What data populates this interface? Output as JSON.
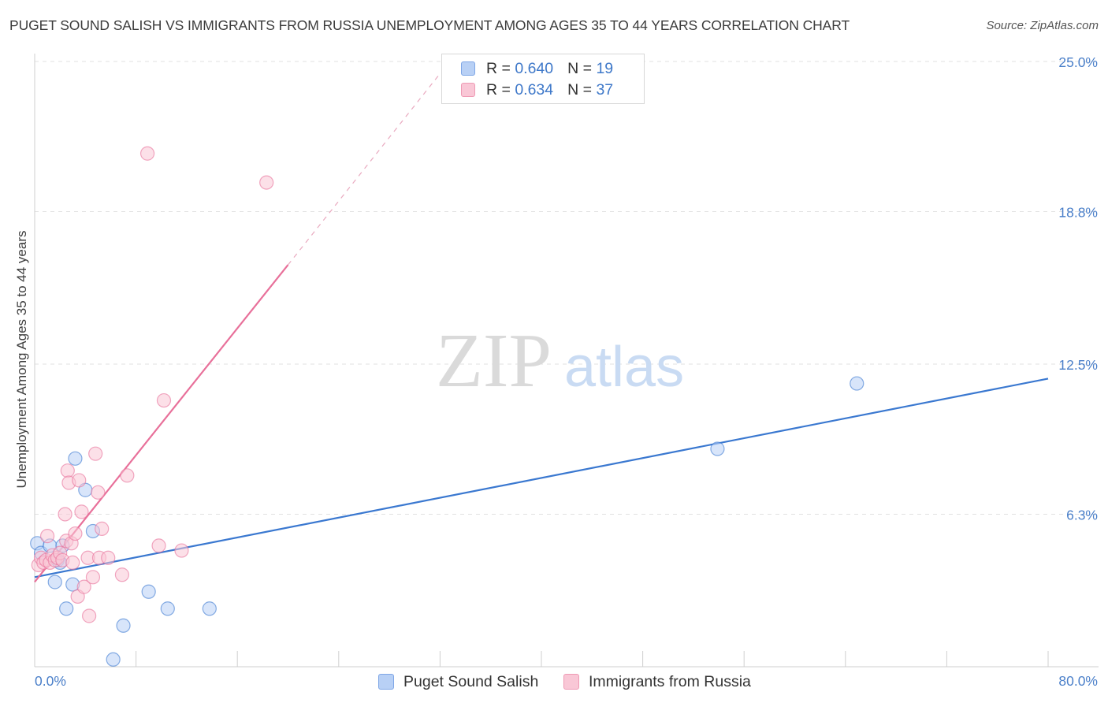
{
  "header": {
    "title": "PUGET SOUND SALISH VS IMMIGRANTS FROM RUSSIA UNEMPLOYMENT AMONG AGES 35 TO 44 YEARS CORRELATION CHART",
    "source": "Source: ZipAtlas.com"
  },
  "watermark": {
    "zip": "ZIP",
    "atlas": "atlas"
  },
  "legend": {
    "rows": [
      {
        "r_label": "R = ",
        "r_value": "0.640",
        "n_label": "N = ",
        "n_value": "19"
      },
      {
        "r_label": "R = ",
        "r_value": "0.634",
        "n_label": "N = ",
        "n_value": "37"
      }
    ]
  },
  "bottom_legend": {
    "blue": "Puget Sound Salish",
    "pink": "Immigrants from Russia"
  },
  "chart_data": {
    "type": "scatter",
    "title": "PUGET SOUND SALISH VS IMMIGRANTS FROM RUSSIA UNEMPLOYMENT AMONG AGES 35 TO 44 YEARS CORRELATION CHART",
    "xlabel": "",
    "ylabel": "Unemployment Among Ages 35 to 44 years",
    "xlim": [
      0,
      80
    ],
    "ylim": [
      0,
      25
    ],
    "x_tick_labels": [
      "0.0%",
      "80.0%"
    ],
    "y_ticks": [
      6.3,
      12.5,
      18.8,
      25.0
    ],
    "y_tick_labels": [
      "6.3%",
      "12.5%",
      "18.8%",
      "25.0%"
    ],
    "grid": true,
    "colors": {
      "blue": "#3a78d0",
      "pink": "#e8709a",
      "blue_fill": "#b8d0f5",
      "pink_fill": "#f9c7d6"
    },
    "series": [
      {
        "name": "Puget Sound Salish",
        "color": "blue",
        "r": 0.64,
        "n": 19,
        "points": [
          [
            0.2,
            5.1
          ],
          [
            0.5,
            4.7
          ],
          [
            1.2,
            5.0
          ],
          [
            1.8,
            4.4
          ],
          [
            2.0,
            4.3
          ],
          [
            1.6,
            3.5
          ],
          [
            2.2,
            5.0
          ],
          [
            3.2,
            8.6
          ],
          [
            4.0,
            7.3
          ],
          [
            4.6,
            5.6
          ],
          [
            2.5,
            2.4
          ],
          [
            3.0,
            3.4
          ],
          [
            7.0,
            1.7
          ],
          [
            6.2,
            0.3
          ],
          [
            9.0,
            3.1
          ],
          [
            10.5,
            2.4
          ],
          [
            13.8,
            2.4
          ],
          [
            53.9,
            9.0
          ],
          [
            64.9,
            11.7
          ]
        ],
        "trend": {
          "x": [
            0,
            80
          ],
          "y": [
            3.7,
            11.9
          ],
          "style": "solid"
        }
      },
      {
        "name": "Immigrants from Russia",
        "color": "pink",
        "r": 0.634,
        "n": 37,
        "points": [
          [
            0.3,
            4.2
          ],
          [
            0.5,
            4.5
          ],
          [
            0.7,
            4.3
          ],
          [
            0.9,
            4.4
          ],
          [
            1.0,
            5.4
          ],
          [
            1.2,
            4.3
          ],
          [
            1.4,
            4.6
          ],
          [
            1.6,
            4.4
          ],
          [
            1.8,
            4.5
          ],
          [
            2.0,
            4.7
          ],
          [
            2.2,
            4.4
          ],
          [
            2.4,
            6.3
          ],
          [
            2.5,
            5.2
          ],
          [
            2.6,
            8.1
          ],
          [
            2.7,
            7.6
          ],
          [
            2.9,
            5.1
          ],
          [
            3.0,
            4.3
          ],
          [
            3.2,
            5.5
          ],
          [
            3.4,
            2.9
          ],
          [
            3.5,
            7.7
          ],
          [
            3.7,
            6.4
          ],
          [
            3.9,
            3.3
          ],
          [
            4.2,
            4.5
          ],
          [
            4.3,
            2.1
          ],
          [
            4.6,
            3.7
          ],
          [
            4.8,
            8.8
          ],
          [
            5.0,
            7.2
          ],
          [
            5.1,
            4.5
          ],
          [
            5.3,
            5.7
          ],
          [
            5.8,
            4.5
          ],
          [
            6.9,
            3.8
          ],
          [
            7.3,
            7.9
          ],
          [
            8.9,
            21.2
          ],
          [
            9.8,
            5.0
          ],
          [
            10.2,
            11.0
          ],
          [
            11.6,
            4.8
          ],
          [
            18.3,
            20.0
          ]
        ],
        "trend": {
          "x": [
            0,
            20
          ],
          "y": [
            3.5,
            16.6
          ],
          "style": "solid"
        },
        "trend_extension": {
          "x": [
            20,
            32
          ],
          "y": [
            16.6,
            24.5
          ],
          "style": "dashed"
        }
      }
    ]
  }
}
